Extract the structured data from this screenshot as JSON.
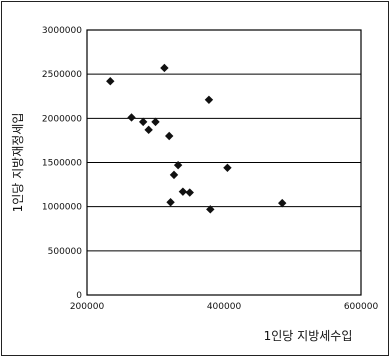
{
  "chart_data": {
    "type": "scatter",
    "title": "",
    "xlabel": "1인당 지방세수입",
    "ylabel": "1인당 지방재정세입",
    "xlim": [
      200000,
      600000
    ],
    "ylim": [
      0,
      3000000
    ],
    "x_ticks": [
      {
        "value": 200000,
        "label": "200000"
      },
      {
        "value": 400000,
        "label": "400000"
      },
      {
        "value": 600000,
        "label": "600000"
      }
    ],
    "y_ticks": [
      {
        "value": 0,
        "label": "0"
      },
      {
        "value": 500000,
        "label": "500000"
      },
      {
        "value": 1000000,
        "label": "1000000"
      },
      {
        "value": 1500000,
        "label": "1500000"
      },
      {
        "value": 2000000,
        "label": "2000000"
      },
      {
        "value": 2500000,
        "label": "2500000"
      },
      {
        "value": 3000000,
        "label": "3000000"
      }
    ],
    "grid": "horizontal",
    "marker": "diamond",
    "marker_color": "#111111",
    "points": [
      {
        "x": 234000,
        "y": 2420000
      },
      {
        "x": 265000,
        "y": 2010000
      },
      {
        "x": 282000,
        "y": 1960000
      },
      {
        "x": 290000,
        "y": 1870000
      },
      {
        "x": 300000,
        "y": 1960000
      },
      {
        "x": 313000,
        "y": 2570000
      },
      {
        "x": 320000,
        "y": 1800000
      },
      {
        "x": 322000,
        "y": 1050000
      },
      {
        "x": 327000,
        "y": 1360000
      },
      {
        "x": 333000,
        "y": 1470000
      },
      {
        "x": 340000,
        "y": 1170000
      },
      {
        "x": 350000,
        "y": 1160000
      },
      {
        "x": 378000,
        "y": 2210000
      },
      {
        "x": 380000,
        "y": 970000
      },
      {
        "x": 405000,
        "y": 1440000
      },
      {
        "x": 485000,
        "y": 1040000
      }
    ]
  }
}
